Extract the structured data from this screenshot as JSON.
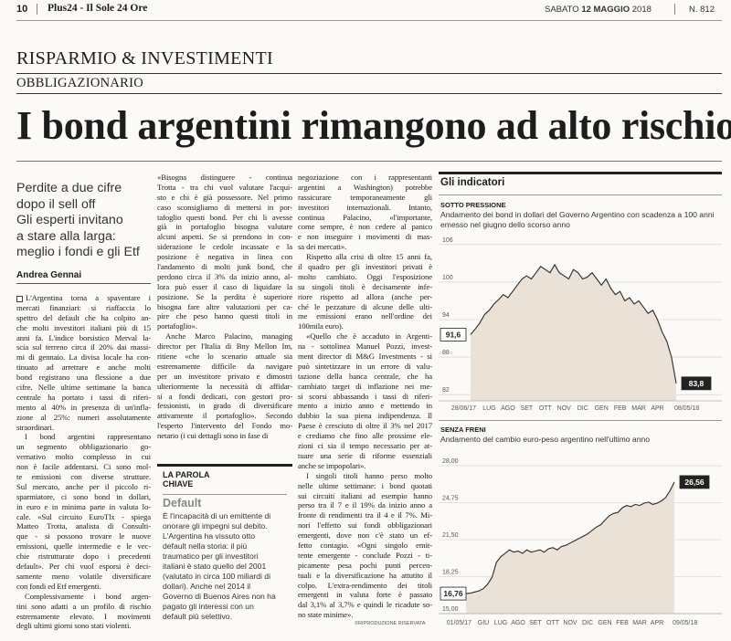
{
  "header": {
    "page": "10",
    "publication": "Plus24 - Il Sole 24 Ore",
    "weekday": "SABATO",
    "date": "12 MAGGIO",
    "year": "2018",
    "issue": "N. 812"
  },
  "section": "RISPARMIO & INVESTIMENTI",
  "subsection": "OBBLIGAZIONARIO",
  "title": "I bond argentini rimangono ad alto rischio",
  "subtitle": [
    "Perdite a due cifre",
    "dopo il sell off",
    "Gli esperti invitano",
    "a stare alla larga:",
    "meglio i fondi e gli Etf"
  ],
  "author": "Andrea Gennai",
  "columns": [
    [
      [
        "L'Argentina torna a spaventare i",
        "mercati finanziari: si riaffaccia lo",
        "spettro del default che ha colpito an-",
        "che molti investitori italiani più di 15",
        "anni fa. L'indice borsistico Merval la-",
        "scia sul terreno circa il 20% dai massi-",
        "mi di gennaio. La divisa locale ha con-",
        "tinuato ad arretrare e anche molti",
        "bond registrano una flessione a due",
        "cifre. Nelle ultime settimane la banca",
        "centrale ha portato i tassi di riferi-",
        "mento al 40% in presenza di un'infla-",
        "zione al 25%: numeri assolutamente",
        "straordinari."
      ],
      [
        "I bond argentini rappresentano",
        "un segmento obbligazionario go-",
        "vernativo molto complesso in cui",
        "non è facile addentarsi. Ci sono mol-",
        "te emissioni con diverse strutture.",
        "Sul mercato, anche per il piccolo ri-",
        "sparmiatore, ci sono bond in dollari,",
        "in euro e in minima parte in valuta lo-",
        "cale. «Sul circuito EuroTlx - spiega",
        "Matteo Trotta, analista di Consulti-",
        "que - si possono trovare le nuove",
        "emissioni, quelle intermedie e le vec-",
        "chie ristrutturate dopo i precedenti",
        "default». Per chi vuol esporsi è deci-",
        "samente meno volatile diversificare",
        "con fondi ed Etf emergenti."
      ],
      [
        "Complessivamente i bond argen-",
        "tini sono adatti a un profilo di rischio",
        "estremamente elevato. I movimenti",
        "degli ultimi giorni sono stati violenti."
      ]
    ],
    [
      [
        "«Bisogna distinguere - continua",
        "Trotta - tra chi vuol valutare l'acqui-",
        "sto e chi è già possessore. Nel primo",
        "caso sconsigliamo di mettersi in por-",
        "tafoglio questi bond. Per chi li avesse",
        "già in portafoglio bisogna valutare",
        "alcuni aspetti. Se si prendono in con-",
        "siderazione le cedole incassate e la",
        "posizione è negativa in linea con",
        "l'andamento di molti junk bond, che",
        "perdono circa il 3% da inizio anno, al-",
        "lora può esser il caso di liquidare la",
        "posizione. Se la perdita è superiore",
        "bisogna fare altre valutazioni per ca-",
        "pire che peso hanno questi titoli in",
        "portafoglio»."
      ],
      [
        "Anche Marco Palacino, managing",
        "director per l'Italia di Bny Mellon Im,",
        "ritiene «che lo scenario attuale sia",
        "estremamente difficile da navigare",
        "per un investitore privato e dimostri",
        "ulteriormente la necessità di affidar-",
        "si a fondi dedicati, con gestori pro-",
        "fessionisti, in grado di diversificare",
        "attivamente il portafoglio». Secondo",
        "l'esperto l'intervento del Fondo mo-",
        "netario (i cui dettagli sono in fase di"
      ]
    ],
    [
      [
        "negoziazione con i rappresentanti",
        "argentini a Washington) potrebbe",
        "rassicurare temporaneamente gli",
        "investitori internazionali. Intanto,",
        "continua Palacino, «l'importante,",
        "come sempre, è non cedere al panico",
        "e non inseguire i movimenti di mas-",
        "sa dei mercati»."
      ],
      [
        "Rispetto alla crisi di oltre 15 anni fa,",
        "il quadro per gli investitori privati è",
        "molto cambiato. Oggi l'esposizione",
        "su singoli titoli è decisamente infe-",
        "riore rispetto ad allora (anche per-",
        "ché le pezzature di alcune delle ulti-",
        "me emissioni erano nell'ordine dei",
        "100mila euro)."
      ],
      [
        "«Quello che è accaduto in Argenti-",
        "na - sottolinea Manuel Pozzi, invest-",
        "ment director di M&G Investments - si",
        "può sintetizzare in un errore di valu-",
        "tazione della banca centrale, che ha",
        "cambiato target di inflazione nei me-",
        "si scorsi abbassando i tassi di riferi-",
        "mento a inizio anno e mettendo in",
        "dubbio la sua piena indipendenza. Il",
        "Paese è cresciuto di oltre il 3% nel 2017",
        "e crediamo che fino alle prossime ele-",
        "zioni ci sia il tempo necessario per at-",
        "tuare una serie di riforme essenziali",
        "anche se impopolari»."
      ],
      [
        "I singoli titoli hanno perso molto",
        "nelle ultime settimane: i bond quotati",
        "sui circuiti italiani ad esempio hanno",
        "perso tra il 7 e il 19% da inizio anno a",
        "fronte di rendimenti tra il 4 e il 7%. Mi-",
        "nori l'effetto sui fondi obbligazionari",
        "emergenti, dove non c'è stato un ef-",
        "fetto contagio. «Ogni singolo emit-",
        "tente emergente - conclude Pozzi - ti-",
        "picamente pesa pochi punti percen-",
        "tuali e la diversificazione ha attutito il",
        "colpo. L'extra-rendimento dei titoli",
        "emergenti in valuta forte è passato",
        "dal 3,1% al 3,7% e quindi le ricadute so-",
        "no state minime»."
      ]
    ]
  ],
  "box": {
    "heading": [
      "LA PAROLA",
      "CHIAVE"
    ],
    "term": "Default",
    "lines": [
      "È l'incapacità di un emittente di",
      "onorare gli impegni sul debito.",
      "L'Argentina ha vissuto otto",
      "default nella storia: il più",
      "traumatico per gli investitori",
      "italiani è stato quello del 2001",
      "(valutato in circa 100 miliardi di",
      "dollari). Anche nel 2014 il",
      "Governo di Buenos Aires non ha",
      "pagato gli interessi con un",
      "default più selettivo."
    ]
  },
  "credit": "©RIPRODUZIONE RISERVATA",
  "charts_header": "Gli indicatori",
  "chart_data": [
    {
      "type": "area",
      "kicker": "SOTTO PRESSIONE",
      "title": "Andamento dei bond in dollari del Governo Argentino con scadenza a 100 anni emesso nel giugno dello scorso anno",
      "categories": [
        "28/06/17",
        null,
        null,
        null,
        "LUG",
        null,
        null,
        null,
        "AGO",
        null,
        null,
        null,
        "SET",
        null,
        null,
        null,
        "OTT",
        null,
        null,
        null,
        "NOV",
        null,
        null,
        null,
        "DIC",
        null,
        null,
        null,
        "GEN",
        null,
        null,
        null,
        "FEB",
        null,
        null,
        null,
        "MAR",
        null,
        null,
        null,
        "APR",
        null,
        null,
        null,
        "08/05/18"
      ],
      "series": [
        {
          "color": "#2a2a2a",
          "values": [
            91.6,
            92.5,
            93.5,
            94.8,
            95.5,
            96.5,
            97.2,
            98,
            97.5,
            98.5,
            99.5,
            100.5,
            101,
            100.5,
            101.5,
            102.5,
            102,
            101.5,
            102.8,
            101.5,
            101,
            100.5,
            102,
            101.5,
            100.5,
            100.8,
            101.5,
            100.5,
            99.5,
            100.5,
            99,
            98,
            98.5,
            97,
            97.5,
            96.5,
            97,
            96,
            95,
            95.5,
            94,
            92,
            90.5,
            88,
            83.8
          ],
          "value_labels": [
            "91,6",
            null,
            null,
            null,
            null,
            null,
            null,
            null,
            null,
            null,
            null,
            null,
            null,
            null,
            null,
            null,
            null,
            null,
            null,
            null,
            null,
            null,
            null,
            null,
            null,
            null,
            null,
            null,
            null,
            null,
            null,
            null,
            null,
            null,
            null,
            null,
            null,
            null,
            null,
            null,
            null,
            null,
            null,
            null,
            "83,8"
          ]
        }
      ],
      "ylim": [
        81,
        107
      ],
      "yticks": [
        82,
        88,
        94,
        100,
        106
      ],
      "grid": true
    },
    {
      "type": "area",
      "kicker": "SENZA FRENI",
      "title": "Andamento del cambio euro-peso argentino nell'ultimo anno",
      "categories": [
        "01/05/17",
        null,
        null,
        null,
        "GIU",
        null,
        null,
        null,
        "LUG",
        null,
        null,
        null,
        "AGO",
        null,
        null,
        null,
        "SET",
        null,
        null,
        null,
        "OTT",
        null,
        null,
        null,
        "NOV",
        null,
        null,
        null,
        "DIC",
        null,
        null,
        null,
        "GEN",
        null,
        null,
        null,
        "FEB",
        null,
        null,
        null,
        "MAR",
        null,
        null,
        null,
        "APR",
        null,
        null,
        null,
        "09/05/18"
      ],
      "series": [
        {
          "color": "#2a2a2a",
          "values": [
            16.76,
            16.8,
            16.9,
            17.0,
            17.2,
            17.6,
            18.2,
            19.5,
            20.0,
            20.3,
            20.6,
            20.4,
            20.5,
            20.3,
            20.6,
            20.4,
            20.5,
            20.6,
            20.4,
            20.7,
            20.8,
            20.6,
            20.9,
            21.0,
            21.2,
            21.4,
            21.6,
            21.8,
            22.0,
            22.3,
            22.6,
            22.8,
            23.2,
            23.6,
            23.8,
            23.9,
            24.3,
            24.5,
            24.4,
            24.6,
            24.5,
            24.7,
            24.8,
            24.6,
            24.7,
            24.9,
            25.2,
            25.8,
            26.56
          ],
          "value_labels": [
            "16,76",
            null,
            null,
            null,
            null,
            null,
            null,
            null,
            null,
            null,
            null,
            null,
            null,
            null,
            null,
            null,
            null,
            null,
            null,
            null,
            null,
            null,
            null,
            null,
            null,
            null,
            null,
            null,
            null,
            null,
            null,
            null,
            null,
            null,
            null,
            null,
            null,
            null,
            null,
            null,
            null,
            null,
            null,
            null,
            null,
            null,
            null,
            null,
            "26,56"
          ]
        }
      ],
      "ylim": [
        15,
        28
      ],
      "yticks": [
        {
          "value": 15,
          "label": "15,00"
        },
        {
          "value": 18.25,
          "label": "18,25"
        },
        {
          "value": 21.5,
          "label": "21,50"
        },
        {
          "value": 24.75,
          "label": "24,75"
        },
        {
          "value": 28,
          "label": "28,00"
        }
      ],
      "grid": true
    }
  ]
}
